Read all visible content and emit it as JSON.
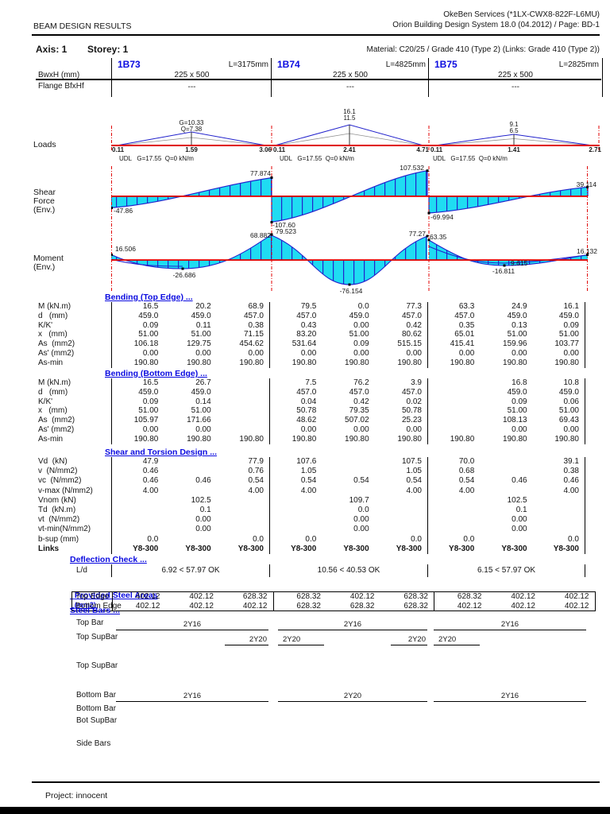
{
  "page": {
    "header_left": "BEAM DESIGN RESULTS",
    "header_right_line1": "OkeBen Services  (*1LX-CWX8-822F-L6MU)",
    "header_right_line2": "Orion Building Design System 18.0 (04.2012) / Page: BD-1",
    "axis_label": "Axis: 1",
    "storey_label": "Storey: 1",
    "material": "Material: C20/25 / Grade 410 (Type 2) (Links: Grade 410 (Type 2))",
    "footer_project": "Project: innocent"
  },
  "colors": {
    "accent_blue": "#0a0ae0",
    "diagram_cyan": "#1fdcf2",
    "diagram_outline_blue": "#2222cc",
    "axis_red": "#e00000"
  },
  "labels": {
    "bwxh": "BwxH (mm)",
    "flange": "Flange BfxHf",
    "loads": "Loads",
    "shear1": "Shear",
    "shear2": "Force",
    "shear3": "(Env.)",
    "moment1": "Moment",
    "moment2": "(Env.)"
  },
  "beams": [
    {
      "name": "1B73",
      "length": "L=3175mm",
      "section": "225 x 500",
      "flange": "---"
    },
    {
      "name": "1B74",
      "length": "L=4825mm",
      "section": "225 x 500",
      "flange": "---"
    },
    {
      "name": "1B75",
      "length": "L=2825mm",
      "section": "225 x 500",
      "flange": "---"
    }
  ],
  "loads": {
    "spans": [
      {
        "peak1": "G=10.33",
        "peak2": "Q=7.38",
        "x_left": "0.11",
        "x_mid": "1.59",
        "x_right": "3.06",
        "udl": "UDL   G=17.55  Q=0 kN/m"
      },
      {
        "peak1": "16.1",
        "peak2": "11.5",
        "x_left": "0.11",
        "x_mid": "2.41",
        "x_right": "4.71",
        "udl": "UDL   G=17.55  Q=0 kN/m"
      },
      {
        "peak1": "9.1",
        "peak2": "6.5",
        "x_left": "0.11",
        "x_mid": "1.41",
        "x_right": "2.71",
        "udl": "UDL   G=17.55  Q=0 kN/m"
      }
    ]
  },
  "shear_labels": {
    "s1_left": "-47.86",
    "s1_right": "77.874",
    "s2_left": "-107.60",
    "s2_right": "107.532",
    "s3_left": "-69.994",
    "s3_right": "39.114"
  },
  "moment_labels": {
    "s1_left": "16.506",
    "s1_mid": "-26.686",
    "s1_right": "68.882",
    "s2_left": "79.523",
    "s2_mid": "-76.154",
    "s2_right": "77.27",
    "s3_left": "63.35",
    "s3_mid": "-16.811",
    "s3_upper": "9.615",
    "s3_right": "16.132"
  },
  "tables": {
    "bending_top": {
      "title": "Bending (Top Edge) ...",
      "rows": [
        {
          "label": "M (kN.m)",
          "values": [
            "16.5",
            "20.2",
            "68.9",
            "79.5",
            "0.0",
            "77.3",
            "63.3",
            "24.9",
            "16.1"
          ]
        },
        {
          "label": "d   (mm)",
          "values": [
            "459.0",
            "459.0",
            "457.0",
            "457.0",
            "459.0",
            "457.0",
            "457.0",
            "459.0",
            "459.0"
          ]
        },
        {
          "label": "K/K'",
          "values": [
            "0.09",
            "0.11",
            "0.38",
            "0.43",
            "0.00",
            "0.42",
            "0.35",
            "0.13",
            "0.09"
          ]
        },
        {
          "label": "x   (mm)",
          "values": [
            "51.00",
            "51.00",
            "71.15",
            "83.20",
            "51.00",
            "80.62",
            "65.01",
            "51.00",
            "51.00"
          ]
        },
        {
          "label": "As  (mm2)",
          "values": [
            "106.18",
            "129.75",
            "454.62",
            "531.64",
            "0.09",
            "515.15",
            "415.41",
            "159.96",
            "103.77"
          ]
        },
        {
          "label": "As' (mm2)",
          "values": [
            "0.00",
            "0.00",
            "0.00",
            "0.00",
            "0.00",
            "0.00",
            "0.00",
            "0.00",
            "0.00"
          ]
        },
        {
          "label": "As-min",
          "values": [
            "190.80",
            "190.80",
            "190.80",
            "190.80",
            "190.80",
            "190.80",
            "190.80",
            "190.80",
            "190.80"
          ]
        }
      ]
    },
    "bending_bottom": {
      "title": "Bending (Bottom Edge) ...",
      "rows": [
        {
          "label": "M (kN.m)",
          "values": [
            "16.5",
            "26.7",
            "",
            "7.5",
            "76.2",
            "3.9",
            "",
            "16.8",
            "10.8"
          ]
        },
        {
          "label": "d   (mm)",
          "values": [
            "459.0",
            "459.0",
            "",
            "457.0",
            "457.0",
            "457.0",
            "",
            "459.0",
            "459.0"
          ]
        },
        {
          "label": "K/K'",
          "values": [
            "0.09",
            "0.14",
            "",
            "0.04",
            "0.42",
            "0.02",
            "",
            "0.09",
            "0.06"
          ]
        },
        {
          "label": "x   (mm)",
          "values": [
            "51.00",
            "51.00",
            "",
            "50.78",
            "79.35",
            "50.78",
            "",
            "51.00",
            "51.00"
          ]
        },
        {
          "label": "As  (mm2)",
          "values": [
            "105.97",
            "171.66",
            "",
            "48.62",
            "507.02",
            "25.23",
            "",
            "108.13",
            "69.43"
          ]
        },
        {
          "label": "As' (mm2)",
          "values": [
            "0.00",
            "0.00",
            "",
            "0.00",
            "0.00",
            "0.00",
            "",
            "0.00",
            "0.00"
          ]
        },
        {
          "label": "As-min",
          "values": [
            "190.80",
            "190.80",
            "190.80",
            "190.80",
            "190.80",
            "190.80",
            "190.80",
            "190.80",
            "190.80"
          ]
        }
      ]
    },
    "shear_torsion": {
      "title": "Shear and Torsion Design ...",
      "rows": [
        {
          "label": "Vd  (kN)",
          "values": [
            "47.9",
            "",
            "77.9",
            "107.6",
            "",
            "107.5",
            "70.0",
            "",
            "39.1"
          ]
        },
        {
          "label": "v  (N/mm2)",
          "values": [
            "0.46",
            "",
            "0.76",
            "1.05",
            "",
            "1.05",
            "0.68",
            "",
            "0.38"
          ]
        },
        {
          "label": "vc  (N/mm2)",
          "values": [
            "0.46",
            "0.46",
            "0.54",
            "0.54",
            "0.54",
            "0.54",
            "0.54",
            "0.46",
            "0.46"
          ]
        },
        {
          "label": "v-max (N/mm2)",
          "values": [
            "4.00",
            "",
            "4.00",
            "4.00",
            "",
            "4.00",
            "4.00",
            "",
            "4.00"
          ]
        },
        {
          "label": "Vnom (kN)",
          "values": [
            "",
            "102.5",
            "",
            "",
            "109.7",
            "",
            "",
            "102.5",
            ""
          ]
        },
        {
          "label": "Td  (kN.m)",
          "values": [
            "",
            "0.1",
            "",
            "",
            "0.0",
            "",
            "",
            "0.1",
            ""
          ]
        },
        {
          "label": "vt  (N/mm2)",
          "values": [
            "",
            "0.00",
            "",
            "",
            "0.00",
            "",
            "",
            "0.00",
            ""
          ]
        },
        {
          "label": "vt-min(N/mm2)",
          "values": [
            "",
            "0.00",
            "",
            "",
            "0.00",
            "",
            "",
            "0.00",
            ""
          ]
        },
        {
          "label": "b-sup (mm)",
          "values": [
            "0.0",
            "",
            "0.0",
            "0.0",
            "",
            "0.0",
            "0.0",
            "",
            "0.0"
          ]
        },
        {
          "label": "Links",
          "bold": true,
          "values": [
            "Y8-300",
            "Y8-300",
            "Y8-300",
            "Y8-300",
            "Y8-300",
            "Y8-300",
            "Y8-300",
            "Y8-300",
            "Y8-300"
          ]
        }
      ]
    },
    "provided": {
      "title": "Provided Steel Areas",
      "title_suffix": "(mm2)",
      "rows": [
        {
          "label": "Top Edge",
          "values": [
            "402.12",
            "402.12",
            "628.32",
            "628.32",
            "402.12",
            "628.32",
            "628.32",
            "402.12",
            "402.12"
          ]
        },
        {
          "label": "Bottom Edge",
          "values": [
            "402.12",
            "402.12",
            "402.12",
            "628.32",
            "628.32",
            "628.32",
            "402.12",
            "402.12",
            "402.12"
          ]
        }
      ]
    }
  },
  "deflection": {
    "title": "Deflection Check ...",
    "row_label": "L/d",
    "values": [
      "6.92 < 57.97 OK",
      "10.56 < 40.53 OK",
      "6.15 < 57.97 OK"
    ]
  },
  "steel": {
    "title": "Steel Bars ...",
    "row_labels": [
      "Top Bar",
      "Top SupBar",
      "Top SupBar",
      "Bottom Bar",
      "Bottom Bar",
      "Bot SupBar",
      "Side Bars"
    ],
    "top_bar": [
      "2Y16",
      "2Y16",
      "2Y16"
    ],
    "top_supbar": [
      "2Y20",
      "2Y20",
      "2Y20",
      "2Y20"
    ],
    "bottom_bar": [
      "2Y16",
      "2Y20",
      "2Y16"
    ]
  }
}
